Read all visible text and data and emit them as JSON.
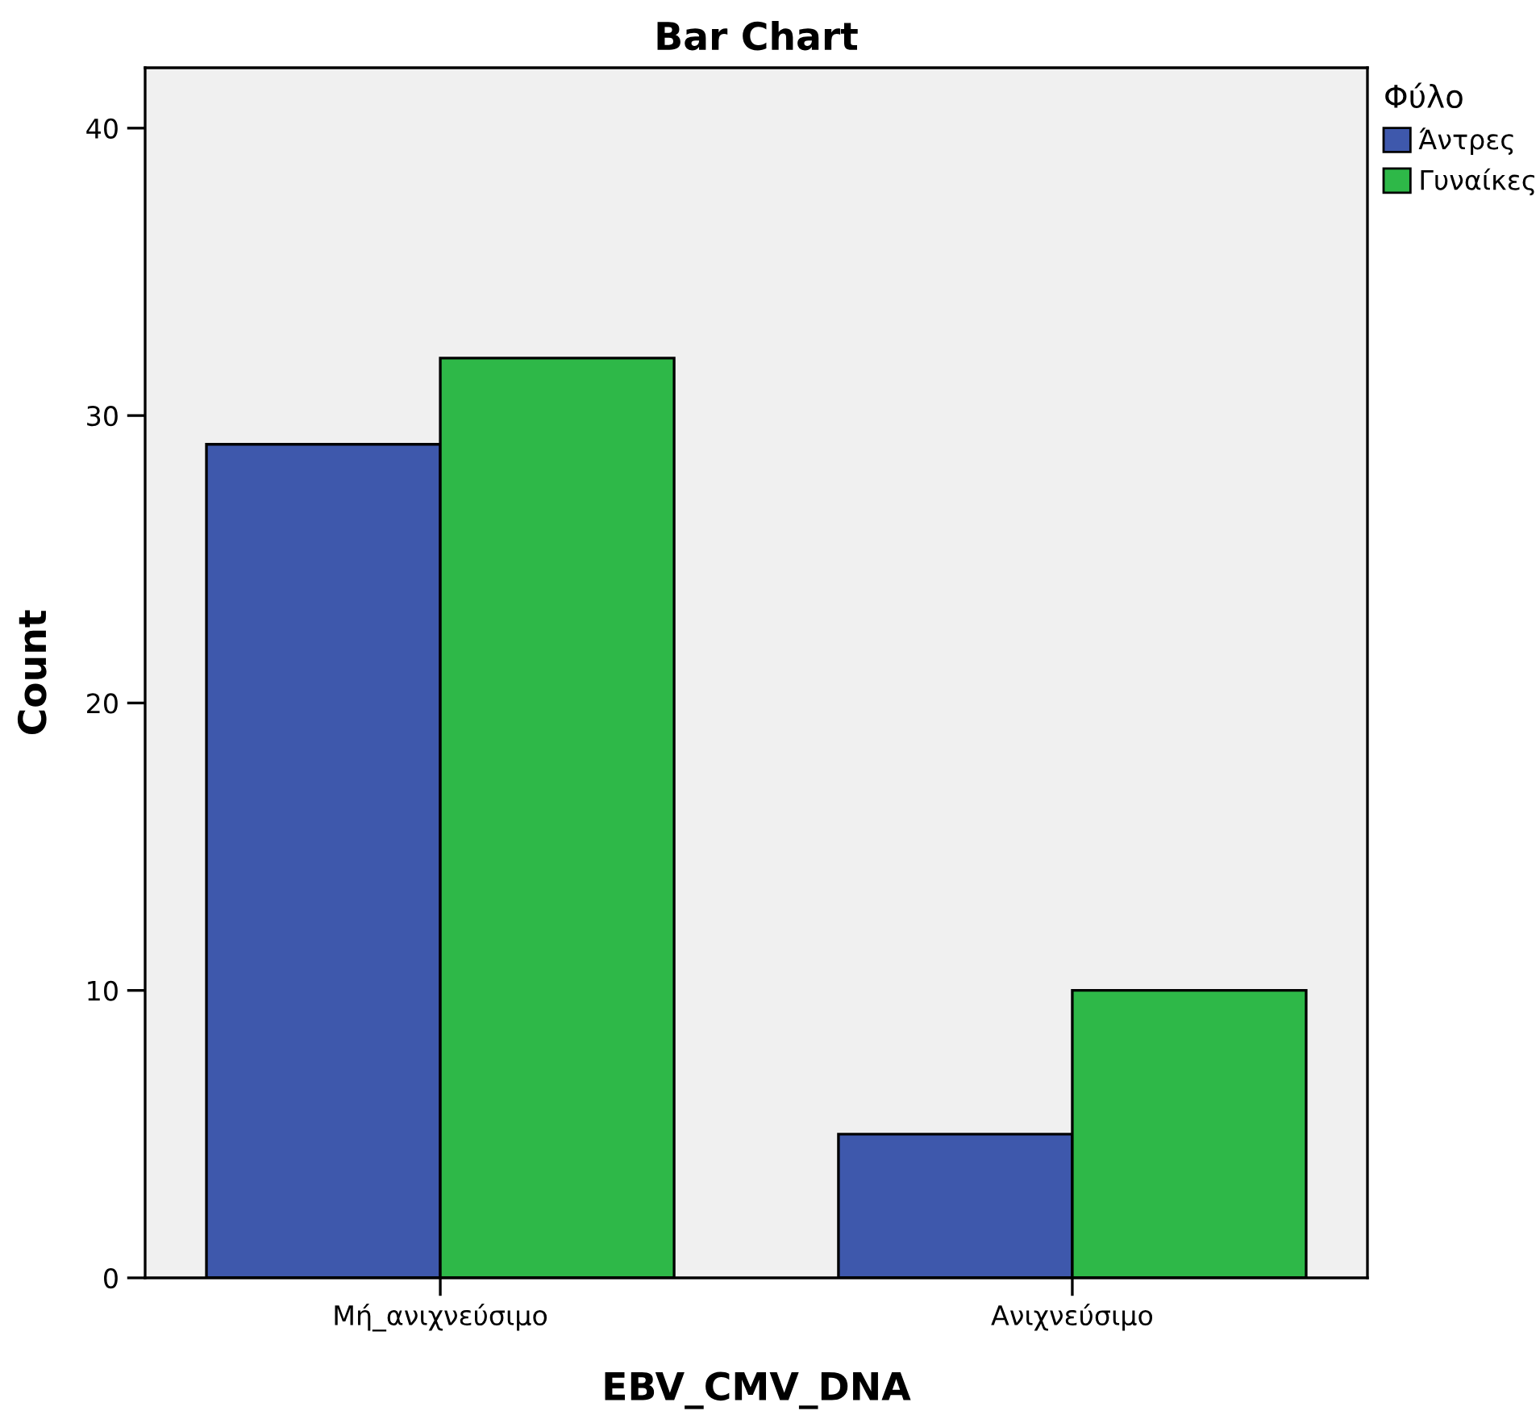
{
  "chart_data": {
    "type": "bar",
    "title": "Bar Chart",
    "xlabel": "EBV_CMV_DNA",
    "ylabel": "Count",
    "legend_title": "Φύλο",
    "categories": [
      "Μή_ανιχνεύσιμο",
      "Ανιχνεύσιμο"
    ],
    "series": [
      {
        "name": "Άντρες",
        "color": "#3e58ac",
        "values": [
          29,
          5
        ]
      },
      {
        "name": "Γυναίκες",
        "color": "#2eb848",
        "values": [
          32,
          10
        ]
      }
    ],
    "ylim": [
      0,
      42.1
    ],
    "yticks": [
      0,
      10,
      20,
      30,
      40
    ],
    "grid": false,
    "legend": "top right"
  }
}
